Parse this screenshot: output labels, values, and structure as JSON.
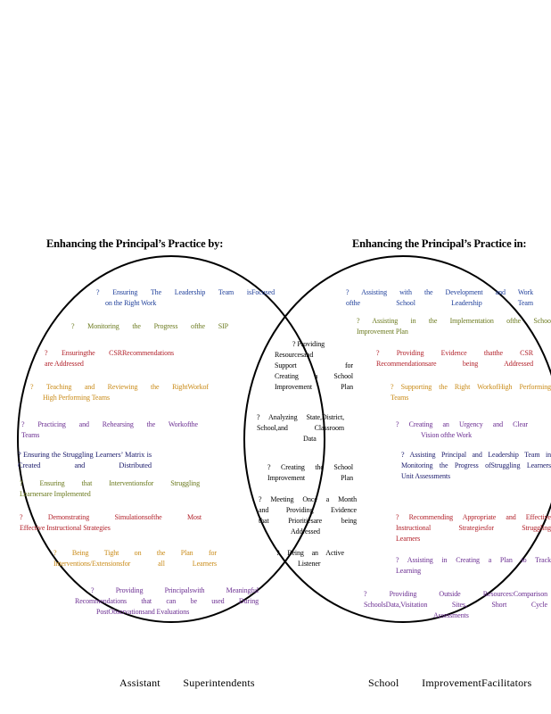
{
  "left_heading": "Enhancing the Principal’s Practice by:",
  "right_heading": "Enhancing the Principal’s Practice in:",
  "left_caption": "Assistant        Superintendents",
  "right_caption": "School        ImprovementFacilitators",
  "colors": {
    "blue": "#1f3f9a",
    "purple": "#6a2d91",
    "red": "#b2222b",
    "orange": "#c98a16",
    "olive": "#6b7a1e",
    "navy": "#1a1a6b",
    "black": "#000000"
  },
  "left_items": [
    {
      "text": "? Ensuring The Leadership Team isFocused on the Right Work",
      "color": "blue"
    },
    {
      "text": "? Monitoring the Progress ofthe SIP",
      "color": "olive"
    },
    {
      "text": "? Ensuringthe CSRRecommendations are Addressed",
      "color": "red"
    },
    {
      "text": "? Teaching and Reviewing the RightWorkof High Performing Teams",
      "color": "orange"
    },
    {
      "text": "? Practicing and Rehearsing the Workofthe Teams",
      "color": "purple"
    },
    {
      "text": "? Ensuring the Struggling Learners’ Matrix is Created and Distributed",
      "color": "navy"
    },
    {
      "text": "? Ensuring that Interventionsfor Struggling Learnersare Implemented",
      "color": "olive"
    },
    {
      "text": "? Demonstrating Simulationsofthe Most Effective Instructional Strategies",
      "color": "red"
    },
    {
      "text": "? Being Tight on the Plan for Interventions/Extensionsfor all Learners",
      "color": "orange"
    },
    {
      "text": "? Providing Principalswith Meaningful Recommendations that can be used During PostObservationsand Evaluations",
      "color": "purple"
    }
  ],
  "center_items": [
    {
      "text": "? Providing Resourcesand Support for Creating a School Improvement Plan",
      "color": "black"
    },
    {
      "text": "? Analyzing State,District, School,and Classroom Data",
      "color": "black"
    },
    {
      "text": "? Creating the School Improvement Plan",
      "color": "black"
    },
    {
      "text": "? Meeting Once a Month and Providing Evidence that Prioritiesare being Addressed",
      "color": "black"
    },
    {
      "text": "? Being an Active Listener",
      "color": "black"
    }
  ],
  "right_items": [
    {
      "text": "? Assisting with the Development and Work ofthe School Leadership Team",
      "color": "blue"
    },
    {
      "text": "? Assisting in the Implementation ofthe School Improvement Plan",
      "color": "olive"
    },
    {
      "text": "? Providing Evidence thatthe CSR Recommendationsare being Addressed",
      "color": "red"
    },
    {
      "text": "? Supporting the Right WorkofHigh Performing Teams",
      "color": "orange"
    },
    {
      "text": "? Creating an Urgency and Clear Vision ofthe Work",
      "color": "purple"
    },
    {
      "text": "? Assisting Principal and Leadership Team in Monitoring the Progress ofStruggling Learners Unit Assessments",
      "color": "navy"
    },
    {
      "text": "? Recommending Appropriate and Effective Instructional Strategiesfor Struggling Learners",
      "color": "red"
    },
    {
      "text": "? Assisting in Creating a Plan to Track Learning",
      "color": "purple"
    },
    {
      "text": "? Providing Outside Resources:Comparison SchoolsData,Visitation Sites, Short Cycle Assessments",
      "color": "purple"
    }
  ]
}
